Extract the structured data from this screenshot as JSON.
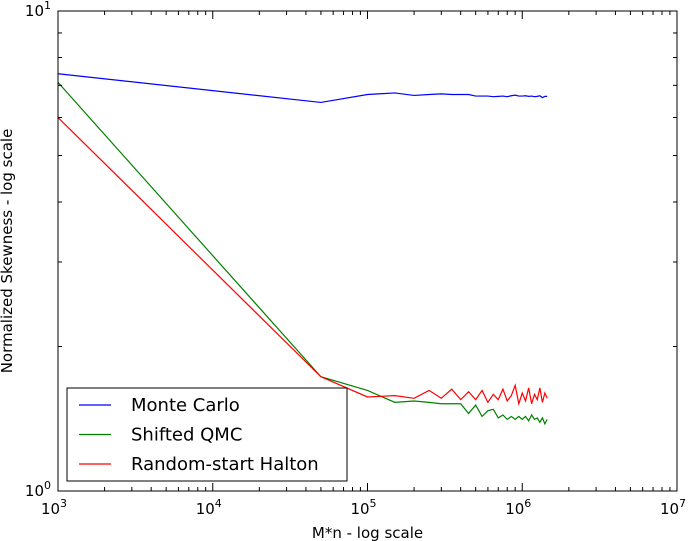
{
  "chart_data": {
    "type": "line",
    "xscale": "log",
    "yscale": "log",
    "xlim": [
      1000,
      10000000
    ],
    "ylim": [
      1,
      10
    ],
    "xlabel": "M*n - log scale",
    "ylabel": "Normalized Skewness - log scale",
    "x_ticks": [
      {
        "base": "10",
        "exp": "3",
        "value": 1000
      },
      {
        "base": "10",
        "exp": "4",
        "value": 10000
      },
      {
        "base": "10",
        "exp": "5",
        "value": 100000
      },
      {
        "base": "10",
        "exp": "6",
        "value": 1000000
      },
      {
        "base": "10",
        "exp": "7",
        "value": 10000000
      }
    ],
    "y_ticks": [
      {
        "base": "10",
        "exp": "0",
        "value": 1
      },
      {
        "base": "10",
        "exp": "1",
        "value": 10
      }
    ],
    "legend_position": "lower-left",
    "series": [
      {
        "name": "Monte Carlo",
        "color": "#0000ff",
        "x": [
          1000,
          50000,
          100000,
          150000,
          200000,
          250000,
          300000,
          350000,
          400000,
          450000,
          500000,
          550000,
          600000,
          650000,
          700000,
          750000,
          800000,
          850000,
          900000,
          950000,
          1000000,
          1050000,
          1100000,
          1150000,
          1200000,
          1250000,
          1300000,
          1350000,
          1400000,
          1450000
        ],
        "y": [
          7.4,
          6.45,
          6.7,
          6.75,
          6.67,
          6.7,
          6.72,
          6.7,
          6.7,
          6.7,
          6.65,
          6.65,
          6.65,
          6.63,
          6.64,
          6.65,
          6.63,
          6.66,
          6.68,
          6.65,
          6.65,
          6.66,
          6.64,
          6.65,
          6.63,
          6.64,
          6.66,
          6.6,
          6.64,
          6.64
        ]
      },
      {
        "name": "Shifted QMC",
        "color": "#008000",
        "x": [
          1000,
          50000,
          100000,
          150000,
          200000,
          250000,
          300000,
          350000,
          400000,
          450000,
          500000,
          550000,
          600000,
          650000,
          700000,
          750000,
          800000,
          850000,
          900000,
          950000,
          1000000,
          1050000,
          1100000,
          1150000,
          1200000,
          1250000,
          1300000,
          1350000,
          1400000,
          1450000
        ],
        "y": [
          7.1,
          1.73,
          1.62,
          1.53,
          1.54,
          1.53,
          1.52,
          1.52,
          1.52,
          1.45,
          1.51,
          1.43,
          1.47,
          1.48,
          1.42,
          1.44,
          1.41,
          1.43,
          1.41,
          1.43,
          1.41,
          1.43,
          1.4,
          1.44,
          1.41,
          1.42,
          1.39,
          1.42,
          1.38,
          1.41
        ]
      },
      {
        "name": "Random-start Halton",
        "color": "#ff0000",
        "x": [
          1000,
          50000,
          100000,
          150000,
          200000,
          250000,
          300000,
          350000,
          400000,
          450000,
          500000,
          550000,
          600000,
          650000,
          700000,
          750000,
          800000,
          850000,
          900000,
          950000,
          1000000,
          1050000,
          1100000,
          1150000,
          1200000,
          1250000,
          1300000,
          1350000,
          1400000,
          1450000
        ],
        "y": [
          6.0,
          1.73,
          1.57,
          1.58,
          1.56,
          1.62,
          1.56,
          1.63,
          1.55,
          1.61,
          1.55,
          1.62,
          1.53,
          1.59,
          1.55,
          1.63,
          1.54,
          1.58,
          1.66,
          1.52,
          1.6,
          1.54,
          1.64,
          1.52,
          1.59,
          1.55,
          1.64,
          1.53,
          1.6,
          1.56
        ]
      }
    ]
  }
}
